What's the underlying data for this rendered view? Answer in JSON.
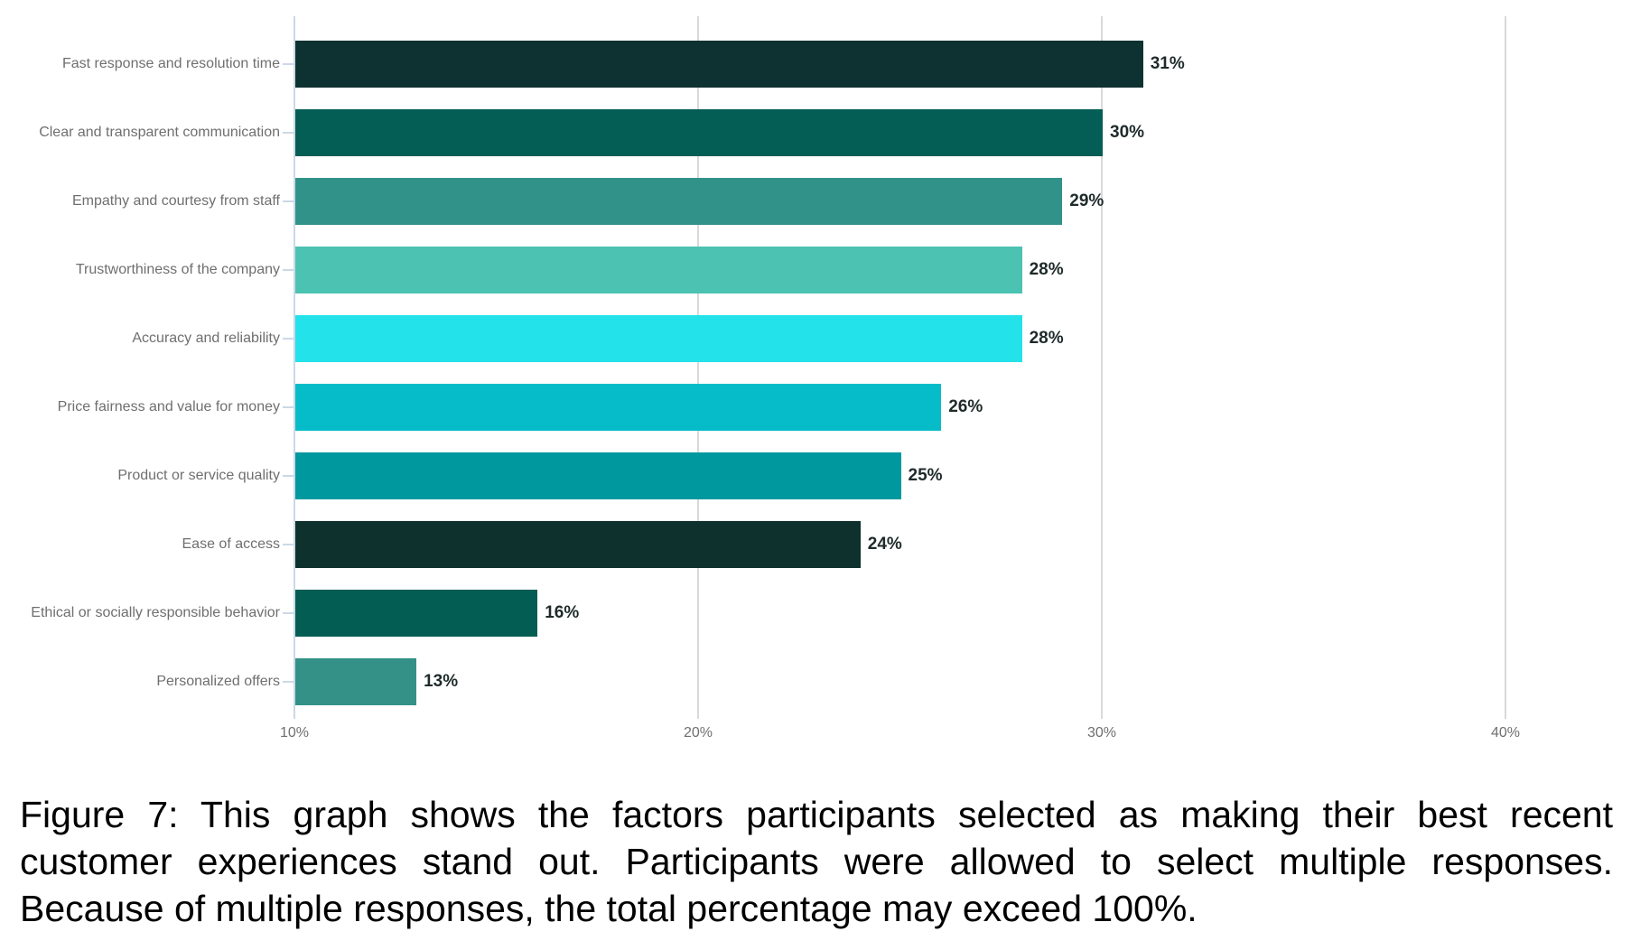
{
  "figure": {
    "caption": "Figure 7: This graph shows the factors participants selected as making their best recent customer experiences stand out. Participants were allowed to select multiple responses. Because of multiple responses, the total percentage may exceed 100%."
  },
  "chart_data": {
    "type": "bar",
    "orientation": "horizontal",
    "title": "",
    "xlabel": "",
    "ylabel": "",
    "categories": [
      "Fast response and resolution time",
      "Clear and transparent communication",
      "Empathy and courtesy from staff",
      "Trustworthiness of the company",
      "Accuracy and reliability",
      "Price fairness and value for money",
      "Product or service quality",
      "Ease of access",
      "Ethical or socially responsible behavior",
      "Personalized offers"
    ],
    "values": [
      31,
      30,
      29,
      28,
      28,
      26,
      25,
      24,
      16,
      13
    ],
    "value_labels": [
      "31%",
      "30%",
      "29%",
      "28%",
      "28%",
      "26%",
      "25%",
      "24%",
      "16%",
      "13%"
    ],
    "bar_colors": [
      "#0e3231",
      "#055e55",
      "#319289",
      "#4cc2b2",
      "#23e2e9",
      "#05bcc8",
      "#00989f",
      "#0f312d",
      "#045d52",
      "#339187"
    ],
    "x_axis": {
      "min": 10,
      "max": 43,
      "ticks": [
        10,
        20,
        30,
        40
      ],
      "tick_labels": [
        "10%",
        "20%",
        "30%",
        "40%"
      ],
      "grid": true
    },
    "colors": {
      "axis_line": "#ccd8e8",
      "gridline": "#d9d9d9",
      "category_label": "#6f6f6f",
      "value_label": "#1f2a2a",
      "background": "#ffffff"
    },
    "legend": "none"
  }
}
